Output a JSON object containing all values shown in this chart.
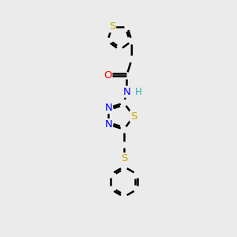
{
  "bg_color": "#ebebeb",
  "bond_width": 1.8,
  "atom_colors": {
    "S": "#ccaa00",
    "O": "#ff0000",
    "N": "#0000ff",
    "H": "#20b0b0",
    "C": "#000000"
  },
  "font_size": 9.5
}
